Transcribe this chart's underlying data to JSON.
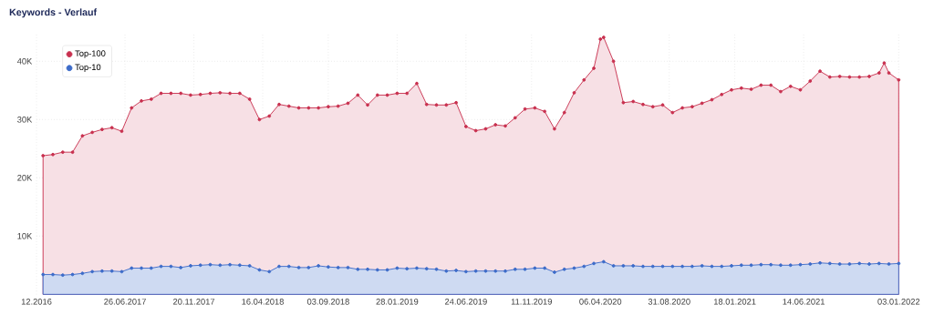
{
  "chart_data": {
    "type": "area",
    "title": "Keywords - Verlauf",
    "xlim": [
      "2016-12-19",
      "2022-01-03"
    ],
    "ylim": [
      0,
      45000
    ],
    "xticks": [
      {
        "value": "2016-12-19",
        "label": "12.2016"
      },
      {
        "value": "2017-06-26",
        "label": "26.06.2017"
      },
      {
        "value": "2017-11-20",
        "label": "20.11.2017"
      },
      {
        "value": "2018-04-16",
        "label": "16.04.2018"
      },
      {
        "value": "2018-09-03",
        "label": "03.09.2018"
      },
      {
        "value": "2019-01-28",
        "label": "28.01.2019"
      },
      {
        "value": "2019-06-24",
        "label": "24.06.2019"
      },
      {
        "value": "2019-11-11",
        "label": "11.11.2019"
      },
      {
        "value": "2020-04-06",
        "label": "06.04.2020"
      },
      {
        "value": "2020-08-31",
        "label": "31.08.2020"
      },
      {
        "value": "2021-01-18",
        "label": "18.01.2021"
      },
      {
        "value": "2021-06-14",
        "label": "14.06.2021"
      },
      {
        "value": "2022-01-03",
        "label": "03.01.2022"
      }
    ],
    "yticks": [
      {
        "value": 10000,
        "label": "10K"
      },
      {
        "value": 20000,
        "label": "20K"
      },
      {
        "value": 30000,
        "label": "30K"
      },
      {
        "value": 40000,
        "label": "40K"
      }
    ],
    "grid": true,
    "legend": "top left",
    "marker": "circle",
    "line_style": "solid",
    "series": [
      {
        "name": "Top-100",
        "color": "#c8304f",
        "x": [
          "2017-01-02",
          "2017-01-23",
          "2017-02-13",
          "2017-03-06",
          "2017-03-27",
          "2017-04-17",
          "2017-05-08",
          "2017-05-29",
          "2017-06-19",
          "2017-07-10",
          "2017-07-31",
          "2017-08-21",
          "2017-09-11",
          "2017-10-02",
          "2017-10-23",
          "2017-11-13",
          "2017-12-04",
          "2017-12-25",
          "2018-01-15",
          "2018-02-05",
          "2018-02-26",
          "2018-03-19",
          "2018-04-09",
          "2018-04-30",
          "2018-05-21",
          "2018-06-11",
          "2018-07-02",
          "2018-07-23",
          "2018-08-13",
          "2018-09-03",
          "2018-09-24",
          "2018-10-15",
          "2018-11-05",
          "2018-11-26",
          "2018-12-17",
          "2019-01-07",
          "2019-01-28",
          "2019-02-18",
          "2019-03-11",
          "2019-04-01",
          "2019-04-22",
          "2019-05-13",
          "2019-06-03",
          "2019-06-24",
          "2019-07-15",
          "2019-08-05",
          "2019-08-26",
          "2019-09-16",
          "2019-10-07",
          "2019-10-28",
          "2019-11-18",
          "2019-12-09",
          "2019-12-30",
          "2020-01-20",
          "2020-02-10",
          "2020-03-02",
          "2020-03-23",
          "2020-04-06",
          "2020-04-13",
          "2020-05-04",
          "2020-05-25",
          "2020-06-15",
          "2020-07-06",
          "2020-07-27",
          "2020-08-17",
          "2020-09-07",
          "2020-09-28",
          "2020-10-19",
          "2020-11-09",
          "2020-11-30",
          "2020-12-21",
          "2021-01-11",
          "2021-02-01",
          "2021-02-22",
          "2021-03-15",
          "2021-04-05",
          "2021-04-26",
          "2021-05-17",
          "2021-06-07",
          "2021-06-28",
          "2021-07-19",
          "2021-08-09",
          "2021-08-30",
          "2021-09-20",
          "2021-10-11",
          "2021-11-01",
          "2021-11-22",
          "2021-12-03",
          "2021-12-13",
          "2022-01-03"
        ],
        "values": [
          23800,
          24000,
          24400,
          24400,
          27200,
          27800,
          28300,
          28600,
          28000,
          32000,
          33200,
          33500,
          34500,
          34500,
          34500,
          34200,
          34300,
          34500,
          34600,
          34500,
          34500,
          33500,
          30000,
          30600,
          32600,
          32300,
          32000,
          32000,
          32000,
          32200,
          32300,
          32800,
          34200,
          32500,
          34200,
          34200,
          34500,
          34500,
          36200,
          32600,
          32500,
          32500,
          32900,
          28800,
          28100,
          28400,
          29100,
          28900,
          30300,
          31800,
          32000,
          31400,
          28400,
          31200,
          34600,
          36800,
          38800,
          43800,
          44100,
          40000,
          32900,
          33100,
          32600,
          32200,
          32500,
          31200,
          32000,
          32200,
          32800,
          33400,
          34300,
          35100,
          35400,
          35200,
          35900,
          35900,
          34800,
          35700,
          35100,
          36600,
          38300,
          37300,
          37400,
          37300,
          37300,
          37400,
          38000,
          39700,
          38000,
          36800
        ]
      },
      {
        "name": "Top-10",
        "color": "#3d6cc9",
        "x": [
          "2017-01-02",
          "2017-01-23",
          "2017-02-13",
          "2017-03-06",
          "2017-03-27",
          "2017-04-17",
          "2017-05-08",
          "2017-05-29",
          "2017-06-19",
          "2017-07-10",
          "2017-07-31",
          "2017-08-21",
          "2017-09-11",
          "2017-10-02",
          "2017-10-23",
          "2017-11-13",
          "2017-12-04",
          "2017-12-25",
          "2018-01-15",
          "2018-02-05",
          "2018-02-26",
          "2018-03-19",
          "2018-04-09",
          "2018-04-30",
          "2018-05-21",
          "2018-06-11",
          "2018-07-02",
          "2018-07-23",
          "2018-08-13",
          "2018-09-03",
          "2018-09-24",
          "2018-10-15",
          "2018-11-05",
          "2018-11-26",
          "2018-12-17",
          "2019-01-07",
          "2019-01-28",
          "2019-02-18",
          "2019-03-11",
          "2019-04-01",
          "2019-04-22",
          "2019-05-13",
          "2019-06-03",
          "2019-06-24",
          "2019-07-15",
          "2019-08-05",
          "2019-08-26",
          "2019-09-16",
          "2019-10-07",
          "2019-10-28",
          "2019-11-18",
          "2019-12-09",
          "2019-12-30",
          "2020-01-20",
          "2020-02-10",
          "2020-03-02",
          "2020-03-23",
          "2020-04-13",
          "2020-05-04",
          "2020-05-25",
          "2020-06-15",
          "2020-07-06",
          "2020-07-27",
          "2020-08-17",
          "2020-09-07",
          "2020-09-28",
          "2020-10-19",
          "2020-11-09",
          "2020-11-30",
          "2020-12-21",
          "2021-01-11",
          "2021-02-01",
          "2021-02-22",
          "2021-03-15",
          "2021-04-05",
          "2021-04-26",
          "2021-05-17",
          "2021-06-07",
          "2021-06-28",
          "2021-07-19",
          "2021-08-09",
          "2021-08-30",
          "2021-09-20",
          "2021-10-11",
          "2021-11-01",
          "2021-11-22",
          "2021-12-13",
          "2022-01-03"
        ],
        "values": [
          3400,
          3400,
          3300,
          3400,
          3600,
          3900,
          4000,
          4000,
          3900,
          4500,
          4500,
          4500,
          4800,
          4800,
          4600,
          4900,
          5000,
          5100,
          5000,
          5100,
          5000,
          4900,
          4200,
          3900,
          4800,
          4800,
          4600,
          4600,
          4900,
          4700,
          4600,
          4600,
          4300,
          4300,
          4200,
          4200,
          4500,
          4400,
          4500,
          4400,
          4300,
          4000,
          4100,
          3900,
          4000,
          4000,
          4000,
          4000,
          4300,
          4300,
          4500,
          4500,
          3800,
          4300,
          4500,
          4800,
          5300,
          5600,
          4900,
          4900,
          4900,
          4800,
          4800,
          4800,
          4800,
          4800,
          4800,
          4900,
          4800,
          4800,
          4900,
          5000,
          5000,
          5100,
          5100,
          5000,
          5000,
          5100,
          5200,
          5400,
          5300,
          5200,
          5200,
          5300,
          5200,
          5300,
          5200,
          5300
        ]
      }
    ]
  }
}
